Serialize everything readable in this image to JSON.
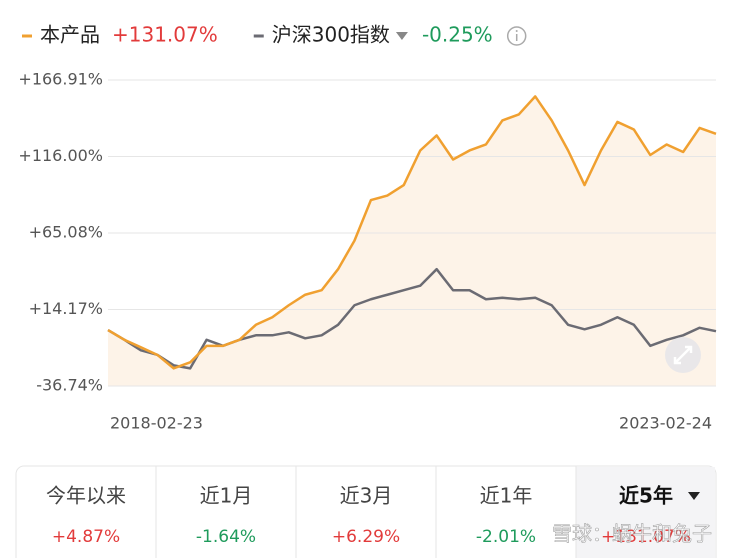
{
  "chart_data": {
    "type": "line",
    "categories": [
      "2018-02-23",
      null,
      null,
      null,
      null,
      null,
      null,
      null,
      null,
      null,
      null,
      null,
      null,
      null,
      null,
      null,
      null,
      null,
      null,
      null,
      null,
      null,
      null,
      null,
      null,
      null,
      null,
      null,
      null,
      null,
      null,
      null,
      null,
      null,
      null,
      null,
      null,
      "2023-02-24"
    ],
    "series": [
      {
        "name": "本产品",
        "color": "#f0a030",
        "return_label": "+131.07%",
        "values": [
          0.5,
          -6,
          -11,
          -16,
          -25,
          -21,
          -10,
          -10,
          -6,
          4,
          9,
          17,
          24,
          27,
          41,
          60,
          87,
          90,
          97,
          120,
          130,
          114,
          120,
          124,
          140,
          144,
          156,
          140,
          120,
          97,
          120,
          139,
          134,
          117,
          124,
          119,
          135,
          131.07
        ]
      },
      {
        "name": "沪深300指数",
        "color": "#6b6b73",
        "return_label": "-0.25%",
        "values": [
          0.5,
          -6,
          -13,
          -16,
          -23,
          -25,
          -6,
          -10,
          -6,
          -3,
          -3,
          -1,
          -5,
          -3,
          4,
          17,
          21,
          24,
          27,
          30,
          41,
          27,
          27,
          21,
          22,
          21,
          22,
          17,
          4,
          1,
          4,
          9,
          4,
          -10,
          -6,
          -3,
          2,
          -0.25
        ]
      }
    ],
    "ylim": [
      -36.74,
      166.91
    ],
    "yticks": [
      {
        "value": 166.91,
        "label": "+166.91%"
      },
      {
        "value": 116.0,
        "label": "+116.00%"
      },
      {
        "value": 65.08,
        "label": "+65.08%"
      },
      {
        "value": 14.17,
        "label": "+14.17%"
      },
      {
        "value": -36.74,
        "label": "-36.74%"
      }
    ],
    "grid": true
  },
  "periods": [
    {
      "label": "今年以来",
      "value": "+4.87%"
    },
    {
      "label": "近1月",
      "value": "-1.64%"
    },
    {
      "label": "近3月",
      "value": "+6.29%"
    },
    {
      "label": "近1年",
      "value": "-2.01%"
    },
    {
      "label": "近5年",
      "value": "+131.07%"
    }
  ],
  "watermark": "雪球：蜗牛和兔子"
}
